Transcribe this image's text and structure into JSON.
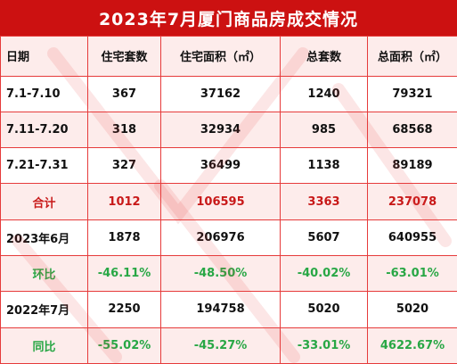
{
  "title": "2023年7月厦门商品房成交情况",
  "headers": [
    "日期",
    "住宅套数",
    "住宅面积（㎡）",
    "总套数",
    "总面积（㎡）"
  ],
  "rows": [
    [
      "7.1-7.10",
      "367",
      "37162",
      "1240",
      "79321"
    ],
    [
      "7.11-7.20",
      "318",
      "32934",
      "985",
      "68568"
    ],
    [
      "7.21-7.31",
      "327",
      "36499",
      "1138",
      "89189"
    ],
    [
      "合计",
      "1012",
      "106595",
      "3363",
      "237078"
    ],
    [
      "2023年6月",
      "1878",
      "206976",
      "5607",
      "640955"
    ],
    [
      "环比",
      "-46.11%",
      "-48.50%",
      "-40.02%",
      "-63.01%"
    ],
    [
      "2022年7月",
      "2250",
      "194758",
      "5020",
      "5020"
    ],
    [
      "同比",
      "-55.02%",
      "-45.27%",
      "-33.01%",
      "4622.67%"
    ]
  ],
  "colors": {
    "title_bg": "#cc1111",
    "border": "#e63b3b",
    "total_text": "#c81919",
    "percent_text": "#28a745",
    "zebra_bg": "#fdeceb"
  }
}
